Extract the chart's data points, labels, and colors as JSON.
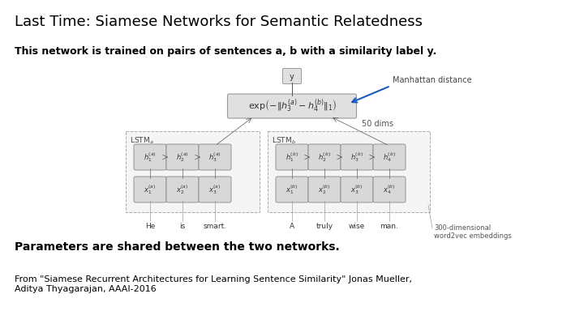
{
  "title": "Last Time: Siamese Networks for Semantic Relatedness",
  "subtitle": "This network is trained on pairs of sentences a, b with a similarity label y.",
  "bold_line": "Parameters are shared between the two networks.",
  "citation": "From \"Siamese Recurrent Architectures for Learning Sentence Similarity\" Jonas Mueller,\nAditya Thyagarajan, AAAI-2016",
  "manhattan_label": "Manhattan distance",
  "dims_label": "50 dims",
  "embed_label": "300-dimensional\nword2vec embeddings",
  "words_a": [
    "He",
    "is",
    "smart."
  ],
  "words_b": [
    "A",
    "truly",
    "wise",
    "man."
  ],
  "bg_color": "#ffffff",
  "title_color": "#000000",
  "arrow_color": "#1a5abf",
  "cell_fill": "#d8d8d8",
  "cell_edge": "#888888",
  "formula_fill": "#e0e0e0",
  "formula_edge": "#999999",
  "dashed_fill": "#f5f5f5",
  "dashed_edge": "#aaaaaa",
  "y_node_fill": "#e0e0e0",
  "y_node_edge": "#999999",
  "title_fontsize": 13,
  "subtitle_fontsize": 9,
  "bold_fontsize": 10,
  "citation_fontsize": 8
}
